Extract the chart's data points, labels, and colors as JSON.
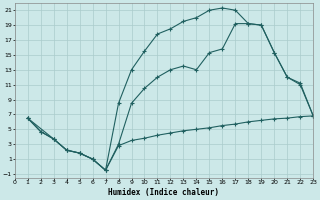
{
  "xlabel": "Humidex (Indice chaleur)",
  "bg_color": "#cce8e8",
  "grid_color": "#aacccc",
  "line_color": "#206060",
  "xlim": [
    0,
    23
  ],
  "ylim": [
    -1.5,
    22
  ],
  "xticks": [
    0,
    1,
    2,
    3,
    4,
    5,
    6,
    7,
    8,
    9,
    10,
    11,
    12,
    13,
    14,
    15,
    16,
    17,
    18,
    19,
    20,
    21,
    22,
    23
  ],
  "yticks": [
    -1,
    1,
    3,
    5,
    7,
    9,
    11,
    13,
    15,
    17,
    19,
    21
  ],
  "curve1_x": [
    1,
    2,
    3,
    4,
    5,
    6,
    7,
    8,
    9,
    10,
    11,
    12,
    13,
    14,
    15,
    16,
    17,
    18,
    19,
    20,
    21,
    22,
    23
  ],
  "curve1_y": [
    6.5,
    4.7,
    3.7,
    2.2,
    1.8,
    1.0,
    -0.5,
    8.5,
    13.0,
    15.5,
    17.8,
    18.5,
    19.5,
    20.0,
    21.0,
    21.3,
    21.0,
    19.2,
    19.0,
    15.3,
    12.0,
    11.0,
    6.8
  ],
  "curve2_x": [
    1,
    2,
    3,
    4,
    5,
    6,
    7,
    8,
    9,
    10,
    11,
    12,
    13,
    14,
    15,
    16,
    17,
    18,
    19,
    20,
    21,
    22,
    23
  ],
  "curve2_y": [
    6.5,
    4.7,
    3.7,
    2.2,
    1.8,
    1.0,
    -0.5,
    2.8,
    3.5,
    3.8,
    4.2,
    4.5,
    4.8,
    5.0,
    5.2,
    5.5,
    5.7,
    6.0,
    6.2,
    6.4,
    6.5,
    6.7,
    6.8
  ],
  "curve3_x": [
    1,
    3,
    4,
    5,
    6,
    7,
    8,
    9,
    10,
    11,
    12,
    13,
    14,
    15,
    16,
    17,
    18,
    19,
    20,
    21,
    22,
    23
  ],
  "curve3_y": [
    6.5,
    3.7,
    2.2,
    1.8,
    1.0,
    -0.5,
    3.0,
    8.5,
    10.5,
    12.0,
    13.0,
    13.5,
    13.0,
    15.3,
    15.8,
    19.2,
    19.2,
    19.0,
    15.3,
    12.0,
    11.2,
    6.8
  ]
}
